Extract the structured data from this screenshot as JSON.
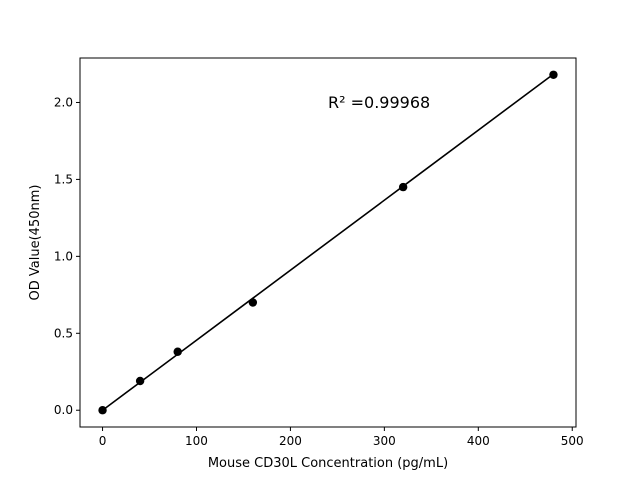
{
  "chart_data": {
    "type": "scatter",
    "xlabel": "Mouse CD30L Concentration (pg/mL)",
    "ylabel": "OD Value(450nm)",
    "xlim": [
      -24,
      504
    ],
    "ylim": [
      -0.109,
      2.289
    ],
    "xticks": [
      0,
      100,
      200,
      300,
      400,
      500
    ],
    "xtick_labels": [
      "0",
      "100",
      "200",
      "300",
      "400",
      "500"
    ],
    "yticks": [
      0.0,
      0.5,
      1.0,
      1.5,
      2.0
    ],
    "ytick_labels": [
      "0.0",
      "0.5",
      "1.0",
      "1.5",
      "2.0"
    ],
    "grid": false,
    "annotation": "R² =0.99968",
    "points": {
      "x": [
        0,
        40,
        80,
        160,
        320,
        480
      ],
      "y": [
        0.0,
        0.19,
        0.38,
        0.7,
        1.45,
        2.18
      ]
    },
    "fit_line": {
      "x": [
        0,
        40,
        80,
        160,
        320,
        480
      ],
      "y": [
        0.0,
        0.182,
        0.364,
        0.728,
        1.456,
        2.184
      ]
    },
    "colors": {
      "marker": "#000000",
      "line": "#000000"
    }
  }
}
